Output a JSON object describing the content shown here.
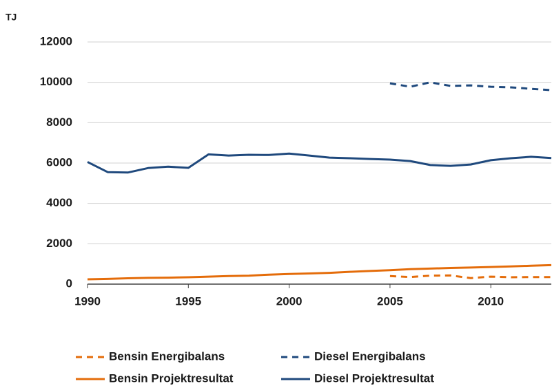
{
  "chart_data": {
    "type": "line",
    "y_axis_label": "TJ",
    "x": [
      1990,
      1991,
      1992,
      1993,
      1994,
      1995,
      1996,
      1997,
      1998,
      1999,
      2000,
      2001,
      2002,
      2003,
      2004,
      2005,
      2006,
      2007,
      2008,
      2009,
      2010,
      2011,
      2012,
      2013
    ],
    "xlim": [
      1990,
      2013
    ],
    "xticks": [
      1990,
      1995,
      2000,
      2005,
      2010
    ],
    "ylim": [
      0,
      12000
    ],
    "yticks": [
      0,
      2000,
      4000,
      6000,
      8000,
      10000,
      12000
    ],
    "grid": true,
    "series": [
      {
        "name": "Bensin Energibalans",
        "color": "#e46c0a",
        "dashed": true,
        "values": [
          null,
          null,
          null,
          null,
          null,
          null,
          null,
          null,
          null,
          null,
          null,
          null,
          null,
          null,
          null,
          400,
          350,
          420,
          430,
          300,
          370,
          340,
          350,
          350
        ]
      },
      {
        "name": "Diesel Energibalans",
        "color": "#1f497d",
        "dashed": true,
        "values": [
          null,
          null,
          null,
          null,
          null,
          null,
          null,
          null,
          null,
          null,
          null,
          null,
          null,
          null,
          null,
          9950,
          9780,
          10000,
          9820,
          9850,
          9780,
          9750,
          9680,
          9610
        ]
      },
      {
        "name": "Bensin Projektresultat",
        "color": "#e46c0a",
        "dashed": false,
        "values": [
          240,
          260,
          290,
          310,
          320,
          340,
          370,
          400,
          420,
          470,
          500,
          530,
          560,
          610,
          650,
          690,
          740,
          770,
          800,
          820,
          850,
          880,
          910,
          940
        ]
      },
      {
        "name": "Diesel Projektresultat",
        "color": "#1f497d",
        "dashed": false,
        "values": [
          6050,
          5550,
          5530,
          5750,
          5820,
          5760,
          6430,
          6370,
          6410,
          6400,
          6470,
          6370,
          6270,
          6240,
          6200,
          6170,
          6100,
          5900,
          5860,
          5930,
          6140,
          6240,
          6310,
          6250
        ]
      }
    ]
  }
}
